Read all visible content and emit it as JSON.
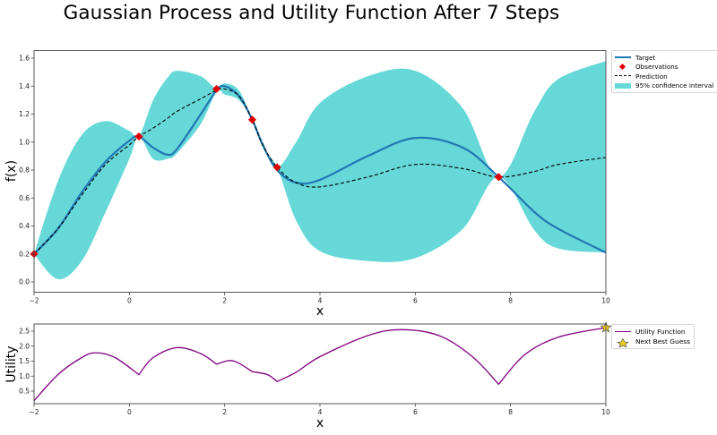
{
  "title": "Gaussian Process and Utility Function After 7 Steps",
  "colors": {
    "target": "#1f77b4",
    "observations": "#e00000",
    "prediction": "#000000",
    "confidence": "#66d8d8",
    "utility": "#800080",
    "next_guess": "#f0d020"
  },
  "top_legend": {
    "target": "Target",
    "observations": "Observations",
    "prediction": "Prediction",
    "confidence": "95% confidence interval"
  },
  "bottom_legend": {
    "utility": "Utility Function",
    "next_guess": "Next Best Guess"
  },
  "chart_data": [
    {
      "type": "line",
      "title": "Gaussian Process and Utility Function After 7 Steps",
      "xlabel": "x",
      "ylabel": "f(x)",
      "xlim": [
        -2,
        10
      ],
      "ylim": [
        -0.07,
        1.66
      ],
      "xticks": [
        "-2",
        "0",
        "2",
        "4",
        "6",
        "8",
        "10"
      ],
      "yticks": [
        "0.0",
        "0.2",
        "0.4",
        "0.6",
        "0.8",
        "1.0",
        "1.2",
        "1.4",
        "1.6"
      ],
      "grid": false,
      "legend_position": "outside upper right",
      "x": [
        -2,
        -1.5,
        -1,
        -0.5,
        0,
        0.2,
        0.5,
        0.8,
        1.0,
        1.5,
        1.83,
        2.0,
        2.3,
        2.58,
        2.8,
        3.1,
        3.5,
        4,
        5,
        6,
        7,
        7.75,
        8.5,
        9,
        10
      ],
      "series": [
        {
          "name": "Target",
          "style": "solid",
          "values": [
            0.2,
            0.38,
            0.64,
            0.86,
            1.01,
            1.04,
            0.96,
            0.91,
            0.95,
            1.2,
            1.37,
            1.4,
            1.33,
            1.16,
            0.98,
            0.8,
            0.71,
            0.73,
            0.9,
            1.03,
            0.96,
            0.75,
            0.5,
            0.38,
            0.21
          ]
        },
        {
          "name": "Prediction",
          "style": "dashed",
          "values": [
            0.2,
            0.38,
            0.62,
            0.84,
            0.98,
            1.04,
            1.1,
            1.17,
            1.22,
            1.31,
            1.37,
            1.38,
            1.33,
            1.16,
            0.98,
            0.82,
            0.71,
            0.68,
            0.75,
            0.84,
            0.81,
            0.75,
            0.79,
            0.84,
            0.89
          ]
        },
        {
          "name": "95% confidence interval upper",
          "values": [
            0.2,
            0.72,
            1.05,
            1.15,
            1.08,
            1.04,
            1.3,
            1.46,
            1.51,
            1.47,
            1.38,
            1.42,
            1.37,
            1.16,
            1.0,
            0.82,
            1.0,
            1.28,
            1.47,
            1.51,
            1.24,
            0.75,
            1.22,
            1.45,
            1.58
          ]
        },
        {
          "name": "95% confidence interval lower",
          "values": [
            0.2,
            0.02,
            0.15,
            0.5,
            0.88,
            1.04,
            0.88,
            0.88,
            0.92,
            1.13,
            1.36,
            1.34,
            1.3,
            1.16,
            0.96,
            0.82,
            0.44,
            0.22,
            0.15,
            0.17,
            0.38,
            0.75,
            0.37,
            0.24,
            0.21
          ]
        }
      ],
      "observations": {
        "name": "Observations",
        "x": [
          -2,
          0.2,
          1.83,
          2.58,
          3.1,
          7.75
        ],
        "y": [
          0.2,
          1.04,
          1.38,
          1.16,
          0.82,
          0.75
        ]
      }
    },
    {
      "type": "line",
      "title": "",
      "xlabel": "x",
      "ylabel": "Utility",
      "xlim": [
        -2,
        10
      ],
      "ylim": [
        0.1,
        2.75
      ],
      "xticks": [
        "-2",
        "0",
        "2",
        "4",
        "6",
        "8",
        "10"
      ],
      "yticks": [
        "0.5",
        "1.0",
        "1.5",
        "2.0",
        "2.5"
      ],
      "grid": false,
      "legend_position": "outside upper right",
      "x": [
        -2,
        -1.5,
        -1,
        -0.7,
        -0.3,
        0.2,
        0.5,
        1.0,
        1.5,
        1.83,
        2.1,
        2.3,
        2.58,
        2.9,
        3.1,
        3.5,
        4,
        5,
        5.7,
        6.5,
        7.2,
        7.75,
        8.3,
        9,
        10
      ],
      "series": [
        {
          "name": "Utility Function",
          "values": [
            0.18,
            1.05,
            1.62,
            1.78,
            1.62,
            1.05,
            1.62,
            1.95,
            1.75,
            1.4,
            1.52,
            1.43,
            1.15,
            1.05,
            0.82,
            1.13,
            1.65,
            2.35,
            2.55,
            2.35,
            1.65,
            0.73,
            1.72,
            2.3,
            2.62
          ]
        }
      ],
      "next_best_guess": {
        "name": "Next Best Guess",
        "x": 10,
        "y": 2.62
      }
    }
  ]
}
